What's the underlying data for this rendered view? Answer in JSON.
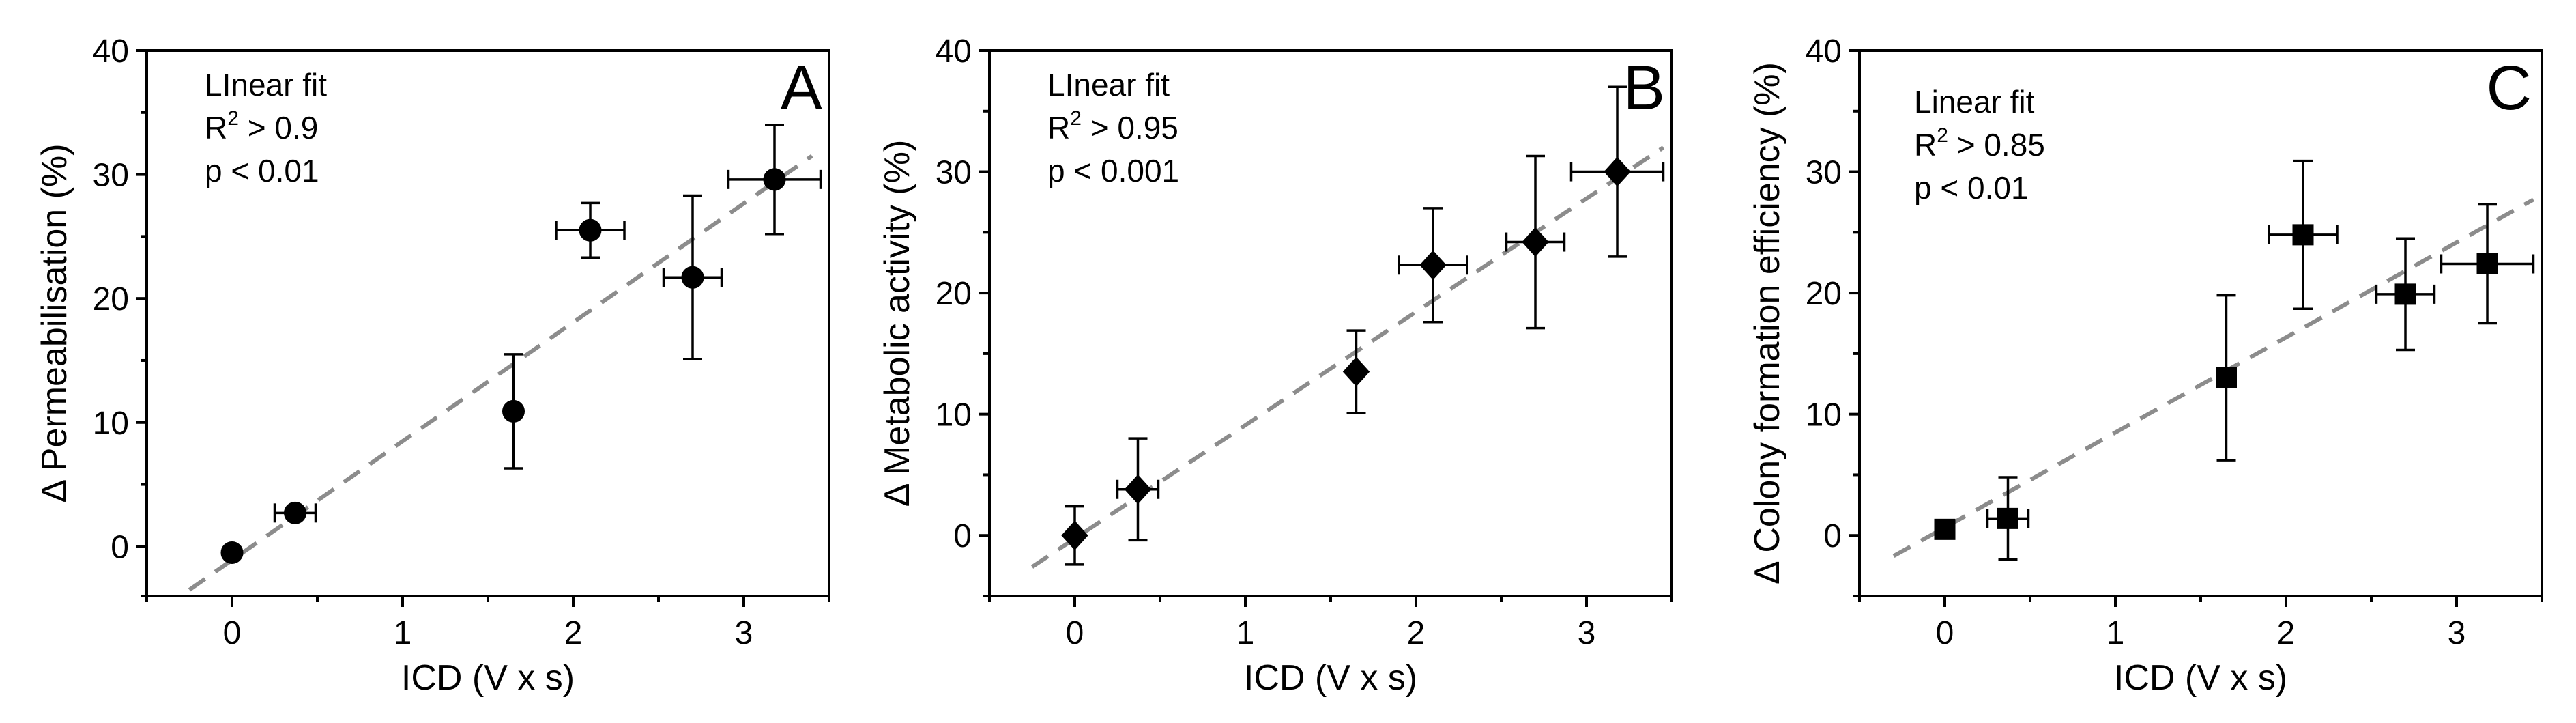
{
  "chart_data": [
    {
      "type": "scatter",
      "panel_label": "A",
      "marker": "circle",
      "xlabel": "ICD (V x s)",
      "ylabel": "Δ Permeabilisation (%)",
      "xlim": [
        -0.5,
        3.5
      ],
      "ylim": [
        -4,
        40
      ],
      "xticks": [
        0,
        1,
        2,
        3
      ],
      "yticks": [
        0,
        10,
        20,
        30,
        40
      ],
      "x": [
        0,
        0.37,
        1.65,
        2.1,
        2.7,
        3.18
      ],
      "y": [
        -0.5,
        2.7,
        10.9,
        25.5,
        21.7,
        29.6
      ],
      "xerr": [
        0,
        0.12,
        0,
        0.2,
        0.17,
        0.27
      ],
      "yerr": [
        0,
        0,
        4.6,
        2.2,
        6.6,
        4.4
      ],
      "fit": {
        "x": [
          -0.25,
          3.4
        ],
        "y": [
          -3.5,
          31.5
        ]
      },
      "annotation": {
        "title": "LInear fit",
        "r2_prefix": "R",
        "r2_sup": "2",
        "r2_text": " > 0.9",
        "p_text": "p  < 0.01"
      }
    },
    {
      "type": "scatter",
      "panel_label": "B",
      "marker": "diamond",
      "xlabel": "ICD (V x s)",
      "ylabel": "Δ Metabolic activity (%)",
      "xlim": [
        -0.5,
        3.5
      ],
      "ylim": [
        -5,
        40
      ],
      "xticks": [
        0,
        1,
        2,
        3
      ],
      "yticks": [
        0,
        10,
        20,
        30,
        40
      ],
      "x": [
        0,
        0.37,
        1.65,
        2.1,
        2.7,
        3.18
      ],
      "y": [
        0,
        3.8,
        13.5,
        22.3,
        24.2,
        30
      ],
      "xerr": [
        0,
        0.12,
        0,
        0.2,
        0.17,
        0.27
      ],
      "yerr": [
        2.4,
        4.2,
        3.4,
        4.7,
        7.1,
        7
      ],
      "fit": {
        "x": [
          -0.25,
          3.45
        ],
        "y": [
          -2.6,
          32
        ]
      },
      "annotation": {
        "title": "LInear fit",
        "r2_prefix": "R",
        "r2_sup": "2",
        "r2_text": " > 0.95",
        "p_text": "p  < 0.001"
      }
    },
    {
      "type": "scatter",
      "panel_label": "C",
      "marker": "square",
      "xlabel": "ICD (V x s)",
      "ylabel": "Δ Colony formation efficiency (%)",
      "xlim": [
        -0.5,
        3.5
      ],
      "ylim": [
        -5,
        40
      ],
      "xticks": [
        0,
        1,
        2,
        3
      ],
      "yticks": [
        0,
        10,
        20,
        30,
        40
      ],
      "x": [
        0,
        0.37,
        1.65,
        2.1,
        2.7,
        3.18
      ],
      "y": [
        0.5,
        1.4,
        13,
        24.8,
        19.9,
        22.4
      ],
      "xerr": [
        0,
        0.12,
        0,
        0.2,
        0.17,
        0.27
      ],
      "yerr": [
        0,
        3.4,
        6.8,
        6.1,
        4.6,
        4.9
      ],
      "fit": {
        "x": [
          -0.3,
          3.45
        ],
        "y": [
          -1.7,
          27.7
        ]
      },
      "annotation": {
        "title": "Linear fit",
        "r2_prefix": "R",
        "r2_sup": "2",
        "r2_text": " > 0.85",
        "p_text": "p  < 0.01"
      }
    }
  ]
}
